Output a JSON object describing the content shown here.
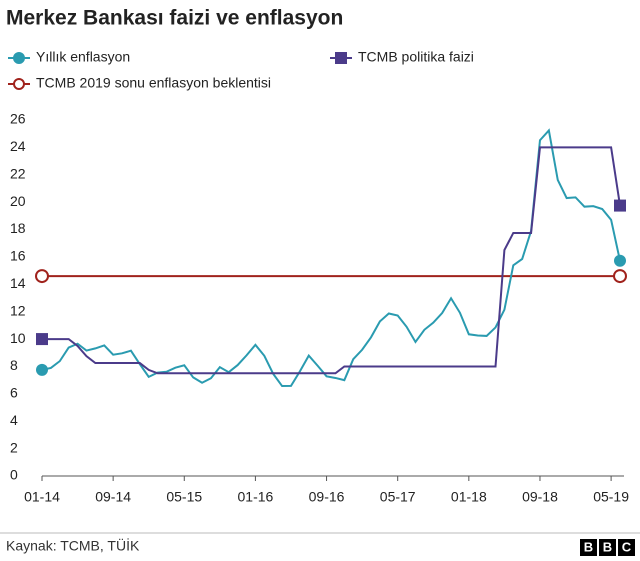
{
  "chart_data": {
    "type": "line",
    "title": "Merkez Bankası faizi ve enflasyon",
    "categories": [
      "01-14",
      null,
      null,
      null,
      null,
      null,
      null,
      null,
      "09-14",
      null,
      null,
      null,
      null,
      null,
      null,
      null,
      "05-15",
      null,
      null,
      null,
      null,
      null,
      null,
      null,
      "01-16",
      null,
      null,
      null,
      null,
      null,
      null,
      null,
      "09-16",
      null,
      null,
      null,
      null,
      null,
      null,
      null,
      "05-17",
      null,
      null,
      null,
      null,
      null,
      null,
      null,
      "01-18",
      null,
      null,
      null,
      null,
      null,
      null,
      null,
      "09-18",
      null,
      null,
      null,
      null,
      null,
      null,
      null,
      "05-19",
      null
    ],
    "series": [
      {
        "name": "Yıllık enflasyon",
        "color": "#2a9bb0",
        "marker": "circle",
        "values": [
          7.75,
          7.89,
          8.39,
          9.38,
          9.66,
          9.16,
          9.32,
          9.54,
          8.86,
          8.96,
          9.15,
          8.17,
          7.24,
          7.55,
          7.61,
          7.91,
          8.09,
          7.2,
          6.81,
          7.14,
          7.95,
          7.58,
          8.1,
          8.81,
          9.58,
          8.78,
          7.46,
          6.57,
          6.58,
          7.64,
          8.79,
          8.05,
          7.28,
          7.16,
          7.0,
          8.53,
          9.22,
          10.13,
          11.29,
          11.87,
          11.72,
          10.9,
          9.79,
          10.68,
          11.2,
          11.9,
          12.98,
          11.92,
          10.35,
          10.26,
          10.23,
          10.85,
          12.15,
          15.39,
          15.85,
          17.9,
          24.52,
          25.24,
          21.62,
          20.3,
          20.35,
          19.67,
          19.71,
          19.5,
          18.71,
          15.72
        ]
      },
      {
        "name": "TCMB politika faizi",
        "color": "#4b3b8a",
        "marker": "square",
        "values": [
          10,
          10,
          10,
          10,
          9.5,
          8.75,
          8.25,
          8.25,
          8.25,
          8.25,
          8.25,
          8.25,
          7.75,
          7.5,
          7.5,
          7.5,
          7.5,
          7.5,
          7.5,
          7.5,
          7.5,
          7.5,
          7.5,
          7.5,
          7.5,
          7.5,
          7.5,
          7.5,
          7.5,
          7.5,
          7.5,
          7.5,
          7.5,
          7.5,
          8,
          8,
          8,
          8,
          8,
          8,
          8,
          8,
          8,
          8,
          8,
          8,
          8,
          8,
          8,
          8,
          8,
          8,
          16.5,
          17.75,
          17.75,
          17.75,
          24,
          24,
          24,
          24,
          24,
          24,
          24,
          24,
          24,
          19.75
        ]
      }
    ],
    "reference_line": {
      "name": "TCMB 2019 sonu enflasyon beklentisi",
      "color": "#a0221c",
      "value": 14.6
    },
    "ylim": [
      0,
      26
    ],
    "yticks": [
      0,
      2,
      4,
      6,
      8,
      10,
      12,
      14,
      16,
      18,
      20,
      22,
      24,
      26
    ],
    "source": "Kaynak: TCMB, TÜİK",
    "logo": [
      "B",
      "B",
      "C"
    ]
  }
}
